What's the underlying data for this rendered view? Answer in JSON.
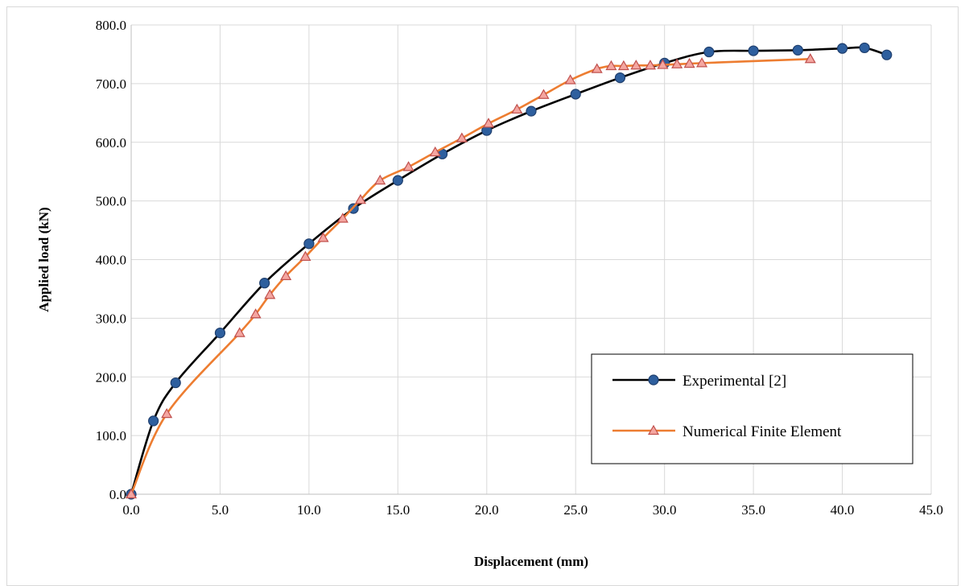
{
  "chart_data": {
    "type": "line",
    "title": "",
    "xlabel": "Displacement (mm)",
    "ylabel": "Applied load (kN)",
    "xlim": [
      0,
      45
    ],
    "ylim": [
      0,
      800
    ],
    "x_ticks": [
      "0.0",
      "5.0",
      "10.0",
      "15.0",
      "20.0",
      "25.0",
      "30.0",
      "35.0",
      "40.0",
      "45.0"
    ],
    "y_ticks": [
      "0.0",
      "100.0",
      "200.0",
      "300.0",
      "400.0",
      "500.0",
      "600.0",
      "700.0",
      "800.0"
    ],
    "grid": true,
    "legend_position": "bottom-right",
    "series": [
      {
        "name": "Experimental [2]",
        "color": "#000000",
        "marker": "circle",
        "marker_fill": "#2e5f9e",
        "marker_stroke": "#1f3f6e",
        "points": [
          [
            0.0,
            0.0
          ],
          [
            1.25,
            125.0
          ],
          [
            2.5,
            190.0
          ],
          [
            5.0,
            275.0
          ],
          [
            7.5,
            360.0
          ],
          [
            10.0,
            427.0
          ],
          [
            12.5,
            487.0
          ],
          [
            15.0,
            535.0
          ],
          [
            17.5,
            580.0
          ],
          [
            20.0,
            620.0
          ],
          [
            22.5,
            653.0
          ],
          [
            25.0,
            682.0
          ],
          [
            27.5,
            710.0
          ],
          [
            30.0,
            735.0
          ],
          [
            32.5,
            754.0
          ],
          [
            35.0,
            756.0
          ],
          [
            37.5,
            757.0
          ],
          [
            40.0,
            760.0
          ],
          [
            41.25,
            761.0
          ],
          [
            42.5,
            749.0
          ]
        ]
      },
      {
        "name": "Numerical Finite Element",
        "color": "#ed7d31",
        "marker": "triangle",
        "marker_fill": "#f4a6a0",
        "marker_stroke": "#c0504d",
        "points": [
          [
            0.0,
            0.0
          ],
          [
            2.0,
            137.0
          ],
          [
            6.1,
            275.0
          ],
          [
            7.0,
            307.0
          ],
          [
            7.8,
            340.0
          ],
          [
            8.7,
            372.0
          ],
          [
            9.8,
            405.0
          ],
          [
            10.8,
            437.0
          ],
          [
            11.9,
            470.0
          ],
          [
            12.9,
            502.0
          ],
          [
            14.0,
            535.0
          ],
          [
            15.6,
            558.0
          ],
          [
            17.1,
            583.0
          ],
          [
            18.6,
            607.0
          ],
          [
            20.1,
            632.0
          ],
          [
            21.7,
            656.0
          ],
          [
            23.2,
            681.0
          ],
          [
            24.7,
            706.0
          ],
          [
            26.2,
            725.0
          ],
          [
            27.0,
            730.0
          ],
          [
            27.7,
            730.0
          ],
          [
            28.4,
            731.0
          ],
          [
            29.2,
            731.0
          ],
          [
            29.9,
            732.0
          ],
          [
            30.7,
            733.0
          ],
          [
            31.4,
            734.0
          ],
          [
            32.1,
            735.0
          ],
          [
            38.2,
            742.0
          ]
        ]
      }
    ]
  }
}
